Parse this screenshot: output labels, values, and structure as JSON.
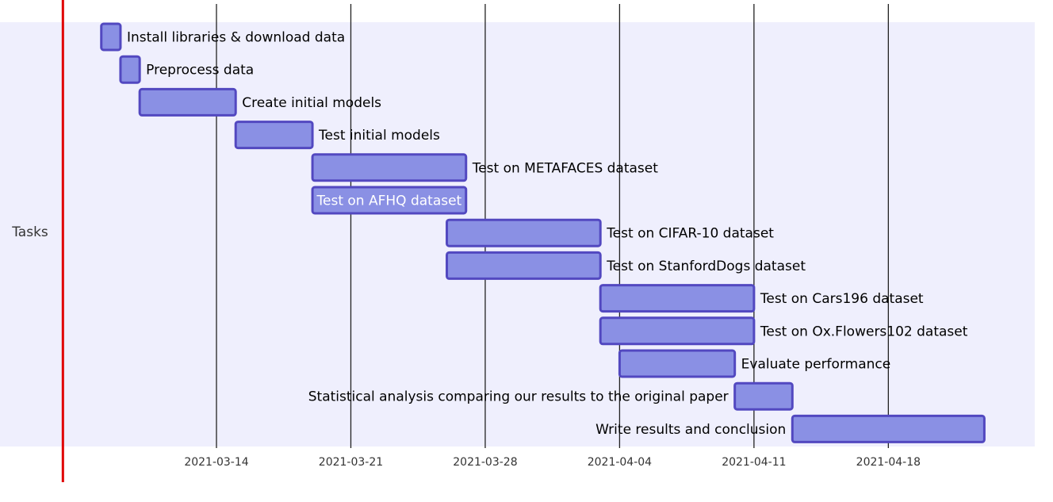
{
  "chart_data": {
    "type": "gantt",
    "section": "Tasks",
    "x_ticks": [
      "2021-03-14",
      "2021-03-21",
      "2021-03-28",
      "2021-04-04",
      "2021-04-11",
      "2021-04-18"
    ],
    "today_marker": "2021-03-06",
    "tasks": [
      {
        "name": "Install libraries & download data",
        "start": "2021-03-08",
        "end": "2021-03-09"
      },
      {
        "name": "Preprocess data",
        "start": "2021-03-09",
        "end": "2021-03-10"
      },
      {
        "name": "Create initial models",
        "start": "2021-03-10",
        "end": "2021-03-15"
      },
      {
        "name": "Test initial models",
        "start": "2021-03-15",
        "end": "2021-03-19"
      },
      {
        "name": "Test on METAFACES dataset",
        "start": "2021-03-19",
        "end": "2021-03-27"
      },
      {
        "name": "Test on AFHQ dataset",
        "start": "2021-03-19",
        "end": "2021-03-27"
      },
      {
        "name": "Test on CIFAR-10 dataset",
        "start": "2021-03-26",
        "end": "2021-04-03"
      },
      {
        "name": "Test on StanfordDogs dataset",
        "start": "2021-03-26",
        "end": "2021-04-03"
      },
      {
        "name": "Test on Cars196 dataset",
        "start": "2021-04-03",
        "end": "2021-04-11"
      },
      {
        "name": "Test on Ox.Flowers102 dataset",
        "start": "2021-04-03",
        "end": "2021-04-11"
      },
      {
        "name": "Evaluate performance",
        "start": "2021-04-04",
        "end": "2021-04-10"
      },
      {
        "name": "Statistical analysis comparing our results to the original paper",
        "start": "2021-04-10",
        "end": "2021-04-13"
      },
      {
        "name": "Write results and conclusion",
        "start": "2021-04-13",
        "end": "2021-04-23"
      }
    ],
    "colors": {
      "section_bg": "#efeffd",
      "bar_fill": "#8a90e4",
      "bar_stroke": "#5248c0",
      "grid": "#222222",
      "today": "#e00000"
    }
  }
}
